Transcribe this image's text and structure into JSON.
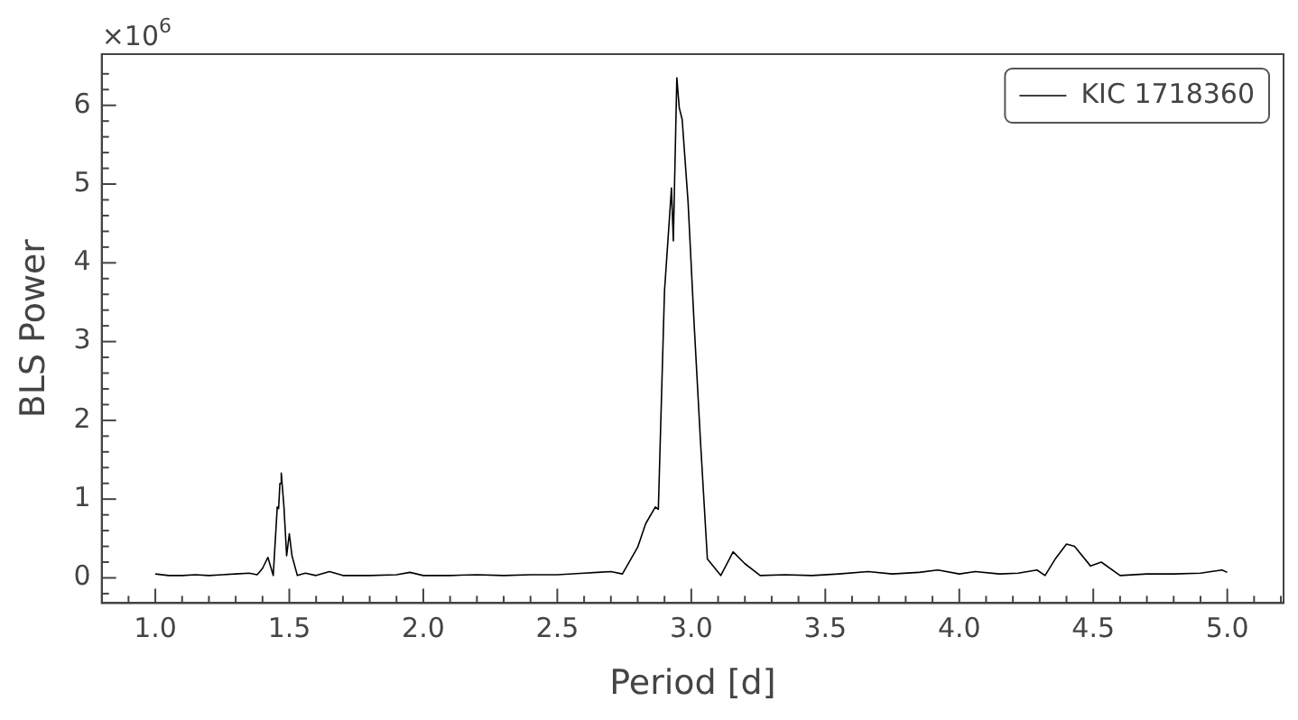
{
  "chart_data": {
    "type": "line",
    "xlabel": "Period [d]",
    "ylabel": "BLS Power",
    "annotations": [
      "×10$^{6}$"
    ],
    "legend": "top right",
    "grid": false,
    "marker": "none",
    "line_style": "solid",
    "xlim": [
      0.8,
      5.21
    ],
    "ylim": [
      -0.32,
      6.65
    ],
    "xticks": [
      {
        "value": 0.9,
        "label": null
      },
      {
        "value": 1.0,
        "label": "1.0"
      },
      {
        "value": 1.1,
        "label": null
      },
      {
        "value": 1.2,
        "label": null
      },
      {
        "value": 1.3,
        "label": null
      },
      {
        "value": 1.4,
        "label": null
      },
      {
        "value": 1.5,
        "label": "1.5"
      },
      {
        "value": 1.6,
        "label": null
      },
      {
        "value": 1.7,
        "label": null
      },
      {
        "value": 1.8,
        "label": null
      },
      {
        "value": 1.9,
        "label": null
      },
      {
        "value": 2.0,
        "label": "2.0"
      },
      {
        "value": 2.1,
        "label": null
      },
      {
        "value": 2.2,
        "label": null
      },
      {
        "value": 2.3,
        "label": null
      },
      {
        "value": 2.4,
        "label": null
      },
      {
        "value": 2.5,
        "label": "2.5"
      },
      {
        "value": 2.6,
        "label": null
      },
      {
        "value": 2.7,
        "label": null
      },
      {
        "value": 2.8,
        "label": null
      },
      {
        "value": 2.9,
        "label": null
      },
      {
        "value": 3.0,
        "label": "3.0"
      },
      {
        "value": 3.1,
        "label": null
      },
      {
        "value": 3.2,
        "label": null
      },
      {
        "value": 3.3,
        "label": null
      },
      {
        "value": 3.4,
        "label": null
      },
      {
        "value": 3.5,
        "label": "3.5"
      },
      {
        "value": 3.6,
        "label": null
      },
      {
        "value": 3.7,
        "label": null
      },
      {
        "value": 3.8,
        "label": null
      },
      {
        "value": 3.9,
        "label": null
      },
      {
        "value": 4.0,
        "label": "4.0"
      },
      {
        "value": 4.1,
        "label": null
      },
      {
        "value": 4.2,
        "label": null
      },
      {
        "value": 4.3,
        "label": null
      },
      {
        "value": 4.4,
        "label": null
      },
      {
        "value": 4.5,
        "label": "4.5"
      },
      {
        "value": 4.6,
        "label": null
      },
      {
        "value": 4.7,
        "label": null
      },
      {
        "value": 4.8,
        "label": null
      },
      {
        "value": 4.9,
        "label": null
      },
      {
        "value": 5.0,
        "label": "5.0"
      },
      {
        "value": 5.1,
        "label": null
      },
      {
        "value": 5.2,
        "label": null
      }
    ],
    "yticks": [
      {
        "value": -0.2,
        "label": null
      },
      0,
      {
        "value": 0.2,
        "label": null
      },
      {
        "value": 0.4,
        "label": null
      },
      {
        "value": 0.6,
        "label": null
      },
      {
        "value": 0.8,
        "label": null
      },
      1,
      {
        "value": 1.2,
        "label": null
      },
      {
        "value": 1.4,
        "label": null
      },
      {
        "value": 1.6,
        "label": null
      },
      {
        "value": 1.8,
        "label": null
      },
      2,
      {
        "value": 2.2,
        "label": null
      },
      {
        "value": 2.4,
        "label": null
      },
      {
        "value": 2.6,
        "label": null
      },
      {
        "value": 2.8,
        "label": null
      },
      3,
      {
        "value": 3.2,
        "label": null
      },
      {
        "value": 3.4,
        "label": null
      },
      {
        "value": 3.6,
        "label": null
      },
      {
        "value": 3.8,
        "label": null
      },
      4,
      {
        "value": 4.2,
        "label": null
      },
      {
        "value": 4.4,
        "label": null
      },
      {
        "value": 4.6,
        "label": null
      },
      {
        "value": 4.8,
        "label": null
      },
      5,
      {
        "value": 5.2,
        "label": null
      },
      {
        "value": 5.4,
        "label": null
      },
      {
        "value": 5.6,
        "label": null
      },
      {
        "value": 5.8,
        "label": null
      },
      6,
      {
        "value": 6.2,
        "label": null
      },
      {
        "value": 6.4,
        "label": null
      }
    ],
    "series": [
      {
        "name": "KIC 1718360",
        "color": "#000000",
        "x": [
          1.0,
          1.05,
          1.1,
          1.15,
          1.2,
          1.25,
          1.3,
          1.35,
          1.38,
          1.4,
          1.42,
          1.44,
          1.455,
          1.46,
          1.465,
          1.47,
          1.48,
          1.49,
          1.5,
          1.51,
          1.53,
          1.56,
          1.6,
          1.65,
          1.7,
          1.8,
          1.9,
          1.95,
          2.0,
          2.1,
          2.2,
          2.3,
          2.4,
          2.5,
          2.6,
          2.65,
          2.7,
          2.743,
          2.8,
          2.83,
          2.866,
          2.877,
          2.9,
          2.926,
          2.933,
          2.946,
          2.955,
          2.966,
          2.988,
          3.01,
          3.034,
          3.06,
          3.11,
          3.156,
          3.2,
          3.257,
          3.35,
          3.45,
          3.55,
          3.66,
          3.75,
          3.85,
          3.92,
          4.0,
          4.06,
          4.15,
          4.22,
          4.29,
          4.32,
          4.36,
          4.4,
          4.43,
          4.49,
          4.53,
          4.6,
          4.7,
          4.8,
          4.9,
          4.98,
          5.0
        ],
        "values": [
          0.05,
          0.03,
          0.03,
          0.04,
          0.03,
          0.04,
          0.05,
          0.06,
          0.04,
          0.12,
          0.26,
          0.03,
          0.9,
          0.88,
          1.2,
          1.33,
          0.9,
          0.28,
          0.56,
          0.28,
          0.03,
          0.06,
          0.03,
          0.08,
          0.03,
          0.03,
          0.04,
          0.07,
          0.03,
          0.03,
          0.04,
          0.03,
          0.04,
          0.04,
          0.06,
          0.07,
          0.08,
          0.05,
          0.39,
          0.69,
          0.9,
          0.87,
          3.64,
          4.95,
          4.28,
          6.35,
          5.97,
          5.82,
          4.77,
          3.26,
          1.75,
          0.24,
          0.03,
          0.33,
          0.18,
          0.03,
          0.04,
          0.03,
          0.05,
          0.08,
          0.05,
          0.07,
          0.1,
          0.05,
          0.08,
          0.05,
          0.06,
          0.1,
          0.03,
          0.25,
          0.43,
          0.4,
          0.15,
          0.2,
          0.03,
          0.05,
          0.05,
          0.06,
          0.1,
          0.07
        ]
      }
    ]
  }
}
